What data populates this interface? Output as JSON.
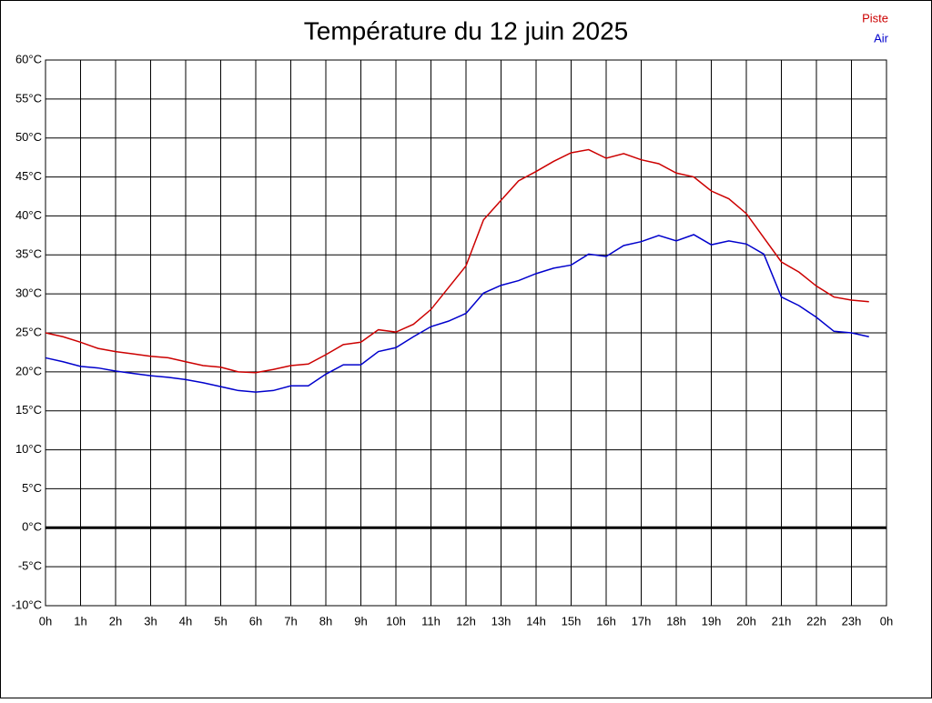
{
  "chart_data": {
    "type": "line",
    "title": "Température du 12 juin 2025",
    "x": [
      0,
      0.5,
      1,
      1.5,
      2,
      2.5,
      3,
      3.5,
      4,
      4.5,
      5,
      5.5,
      6,
      6.5,
      7,
      7.5,
      8,
      8.5,
      9,
      9.5,
      10,
      10.5,
      11,
      11.5,
      12,
      12.5,
      13,
      13.5,
      14,
      14.5,
      15,
      15.5,
      16,
      16.5,
      17,
      17.5,
      18,
      18.5,
      19,
      19.5,
      20,
      20.5,
      21,
      21.5,
      22,
      22.5,
      23,
      23.5
    ],
    "series": [
      {
        "name": "Piste",
        "color": "#cc0000",
        "values": [
          25.0,
          24.5,
          23.8,
          23.0,
          22.6,
          22.3,
          22.0,
          21.8,
          21.3,
          20.8,
          20.6,
          20.0,
          19.9,
          20.3,
          20.8,
          21.0,
          22.2,
          23.5,
          23.8,
          25.4,
          25.1,
          26.1,
          28.0,
          30.8,
          33.6,
          39.5,
          42.0,
          44.5,
          45.7,
          47.0,
          48.1,
          48.5,
          47.4,
          48.0,
          47.2,
          46.7,
          45.5,
          45.0,
          43.2,
          42.2,
          40.3,
          37.2,
          34.1,
          32.8,
          31.0,
          29.6,
          29.2,
          29.0
        ]
      },
      {
        "name": "Air",
        "color": "#0000cc",
        "values": [
          21.8,
          21.3,
          20.7,
          20.5,
          20.1,
          19.8,
          19.5,
          19.3,
          19.0,
          18.6,
          18.1,
          17.6,
          17.4,
          17.6,
          18.2,
          18.2,
          19.7,
          20.9,
          20.9,
          22.6,
          23.1,
          24.5,
          25.8,
          26.5,
          27.5,
          30.1,
          31.1,
          31.7,
          32.6,
          33.3,
          33.7,
          35.1,
          34.8,
          36.2,
          36.7,
          37.5,
          36.8,
          37.6,
          36.3,
          36.8,
          36.4,
          35.1,
          29.6,
          28.5,
          27.0,
          25.2,
          25.0,
          24.5
        ]
      }
    ],
    "xlim": [
      0,
      24
    ],
    "xticks": [
      {
        "value": 0,
        "label": "0h"
      },
      {
        "value": 1,
        "label": "1h"
      },
      {
        "value": 2,
        "label": "2h"
      },
      {
        "value": 3,
        "label": "3h"
      },
      {
        "value": 4,
        "label": "4h"
      },
      {
        "value": 5,
        "label": "5h"
      },
      {
        "value": 6,
        "label": "6h"
      },
      {
        "value": 7,
        "label": "7h"
      },
      {
        "value": 8,
        "label": "8h"
      },
      {
        "value": 9,
        "label": "9h"
      },
      {
        "value": 10,
        "label": "10h"
      },
      {
        "value": 11,
        "label": "11h"
      },
      {
        "value": 12,
        "label": "12h"
      },
      {
        "value": 13,
        "label": "13h"
      },
      {
        "value": 14,
        "label": "14h"
      },
      {
        "value": 15,
        "label": "15h"
      },
      {
        "value": 16,
        "label": "16h"
      },
      {
        "value": 17,
        "label": "17h"
      },
      {
        "value": 18,
        "label": "18h"
      },
      {
        "value": 19,
        "label": "19h"
      },
      {
        "value": 20,
        "label": "20h"
      },
      {
        "value": 21,
        "label": "21h"
      },
      {
        "value": 22,
        "label": "22h"
      },
      {
        "value": 23,
        "label": "23h"
      },
      {
        "value": 24,
        "label": "0h"
      }
    ],
    "ylim": [
      -10,
      60
    ],
    "yticks": [
      {
        "value": -10,
        "label": "-10°C"
      },
      {
        "value": -5,
        "label": "-5°C"
      },
      {
        "value": 0,
        "label": "0°C"
      },
      {
        "value": 5,
        "label": "5°C"
      },
      {
        "value": 10,
        "label": "10°C"
      },
      {
        "value": 15,
        "label": "15°C"
      },
      {
        "value": 20,
        "label": "20°C"
      },
      {
        "value": 25,
        "label": "25°C"
      },
      {
        "value": 30,
        "label": "30°C"
      },
      {
        "value": 35,
        "label": "35°C"
      },
      {
        "value": 40,
        "label": "40°C"
      },
      {
        "value": 45,
        "label": "45°C"
      },
      {
        "value": 50,
        "label": "50°C"
      },
      {
        "value": 55,
        "label": "55°C"
      },
      {
        "value": 60,
        "label": "60°C"
      }
    ],
    "grid": true,
    "legend": "top-right"
  }
}
